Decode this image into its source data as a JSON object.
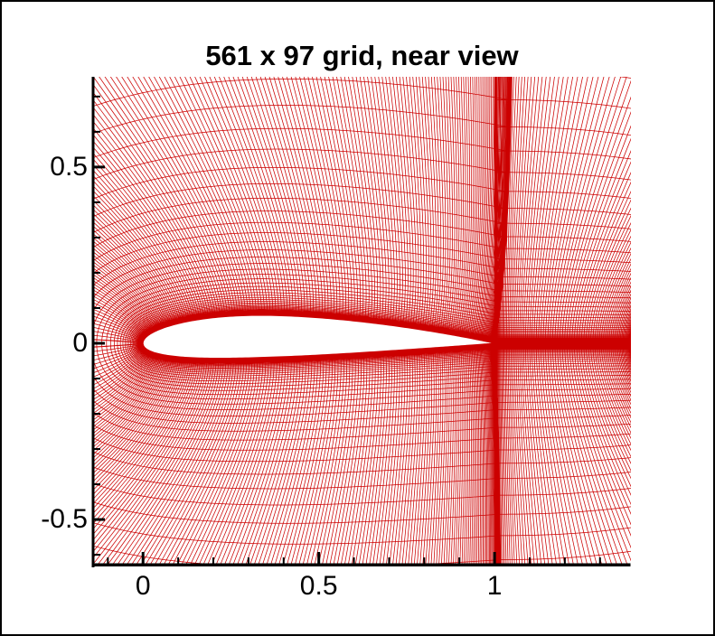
{
  "chart_data": {
    "type": "mesh",
    "title": "561 x 97 grid, near view",
    "grid": {
      "i_points": 561,
      "j_points": 97,
      "topology": "C-grid around airfoil with wake cut"
    },
    "airfoil": {
      "family": "cambered NACA-4-digit-like",
      "max_camber": 0.02,
      "camber_position": 0.4,
      "thickness": 0.12,
      "chord_from": 0,
      "chord_to": 1
    },
    "wake": {
      "cut_y": 0,
      "downstream_x": 1.392
    },
    "x_axis": {
      "range": [
        -0.142,
        1.388
      ],
      "major_ticks": [
        0,
        0.5,
        1
      ],
      "major_tick_labels": [
        "0",
        "0.5",
        "1"
      ],
      "minor_tick_step": 0.1
    },
    "y_axis": {
      "range": [
        -0.628,
        0.756
      ],
      "major_ticks": [
        -0.5,
        0,
        0.5
      ],
      "major_tick_labels": [
        "-0.5",
        "0",
        "0.5"
      ],
      "minor_tick_step": 0.1
    },
    "colors": {
      "mesh": "#cc0000",
      "axis": "#000000",
      "title": "#000000",
      "background": "#ffffff",
      "border": "#000000"
    }
  }
}
